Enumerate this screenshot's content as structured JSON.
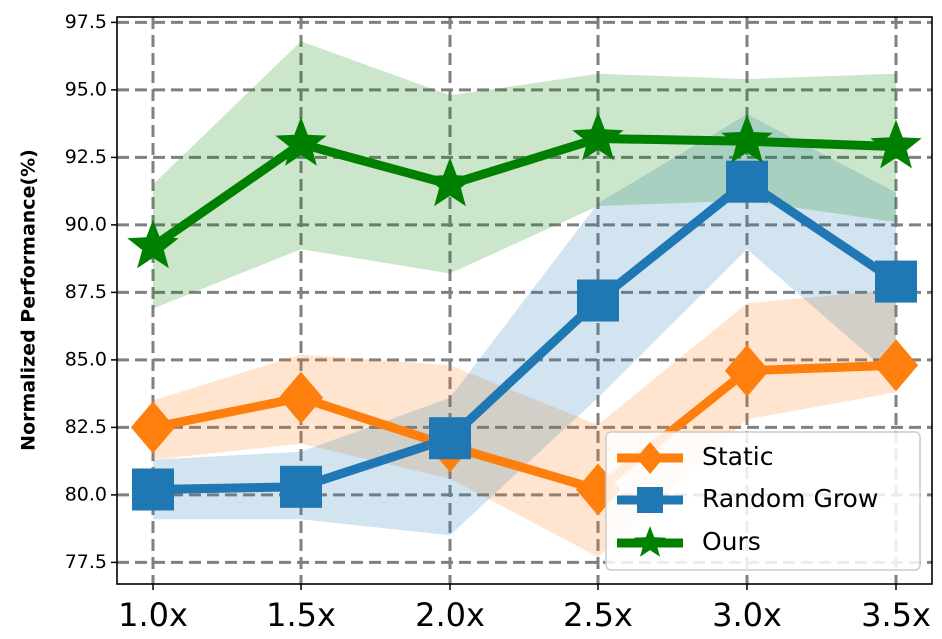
{
  "chart_data": {
    "type": "line",
    "title": "",
    "xlabel": "",
    "ylabel": "Normalized Performance(%)",
    "categories": [
      "1.0x",
      "1.5x",
      "2.0x",
      "2.5x",
      "3.0x",
      "3.5x"
    ],
    "yticks": [
      "77.5",
      "80.0",
      "82.5",
      "85.0",
      "87.5",
      "90.0",
      "92.5",
      "95.0",
      "97.5"
    ],
    "ylim": [
      76.7,
      97.7
    ],
    "grid": true,
    "legend_position": "bottom-right",
    "series": [
      {
        "name": "Static",
        "color": "#ff7f0e",
        "marker": "diamond",
        "values": [
          82.5,
          83.6,
          81.8,
          80.2,
          84.6,
          84.8
        ],
        "band_upper": [
          83.5,
          85.2,
          84.8,
          82.6,
          87.1,
          87.6
        ],
        "band_lower": [
          81.3,
          81.9,
          80.6,
          77.7,
          82.8,
          83.8
        ]
      },
      {
        "name": "Random Grow",
        "color": "#1f77b4",
        "marker": "square",
        "values": [
          80.2,
          80.3,
          82.1,
          87.2,
          91.6,
          87.9
        ],
        "band_upper": [
          81.3,
          81.6,
          83.6,
          90.8,
          94.1,
          91.2
        ],
        "band_lower": [
          79.1,
          79.1,
          78.5,
          83.6,
          89.1,
          84.3
        ]
      },
      {
        "name": "Ours",
        "color": "#008000",
        "marker": "star",
        "values": [
          89.2,
          93.0,
          91.5,
          93.2,
          93.1,
          92.9
        ],
        "band_upper": [
          91.5,
          96.8,
          94.8,
          95.6,
          95.4,
          95.6
        ],
        "band_lower": [
          86.9,
          89.1,
          88.2,
          90.7,
          90.9,
          90.1
        ]
      }
    ]
  }
}
